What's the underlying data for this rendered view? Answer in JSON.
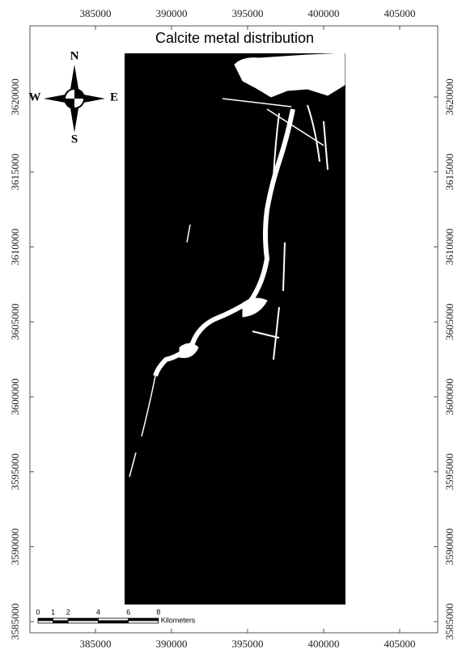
{
  "title": "Calcite metal distribution",
  "x_labels": [
    385000,
    390000,
    395000,
    400000,
    405000
  ],
  "y_labels": [
    3585000,
    3590000,
    3595000,
    3600000,
    3605000,
    3610000,
    3615000,
    3620000
  ],
  "compass": {
    "north": "N",
    "south": "S",
    "east": "E",
    "west": "W"
  },
  "scale_bar": {
    "labels": [
      0,
      1,
      2,
      4,
      6,
      8
    ],
    "unit": "Kilometers"
  }
}
